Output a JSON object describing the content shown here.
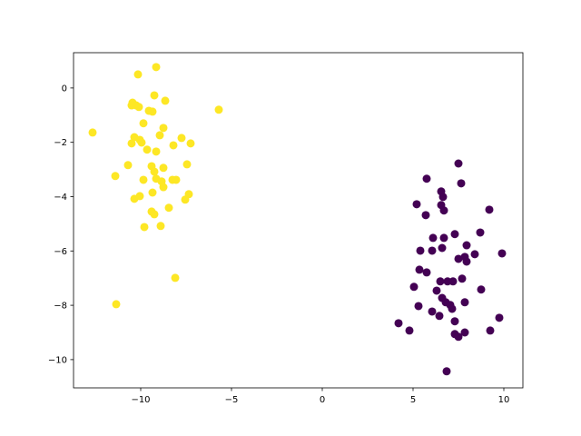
{
  "chart_data": {
    "type": "scatter",
    "xlim": [
      -13.7,
      11.05
    ],
    "ylim": [
      -11.04,
      1.3
    ],
    "xticks": [
      {
        "value": -10,
        "label": "−10"
      },
      {
        "value": -5,
        "label": "−5"
      },
      0,
      5,
      10
    ],
    "yticks": [
      {
        "value": -10,
        "label": "−10"
      },
      {
        "value": -8,
        "label": "−8"
      },
      {
        "value": -6,
        "label": "−6"
      },
      {
        "value": -4,
        "label": "−4"
      },
      {
        "value": -2,
        "label": "−2"
      },
      0
    ],
    "series": [
      {
        "color": "#fde725",
        "x": [
          -9.15,
          -10.15,
          -5.7,
          -9.25,
          -8.65,
          -10.45,
          -10.25,
          -10.5,
          -10.1,
          -9.55,
          -9.35,
          -9.85,
          -8.75,
          -12.65,
          -10.35,
          -8.95,
          -10.05,
          -7.75,
          -10.5,
          -9.95,
          -7.25,
          -8.2,
          -9.65,
          -9.15,
          -7.45,
          -10.7,
          -9.4,
          -8.75,
          -9.25,
          -11.4,
          -9.85,
          -9.15,
          -8.85,
          -8.25,
          -8.05,
          -8.75,
          -10.05,
          -9.35,
          -7.35,
          -10.35,
          -7.55,
          -8.45,
          -9.4,
          -9.25,
          -8.9,
          -9.8,
          -8.1,
          -11.35
        ],
        "y": [
          0.77,
          0.5,
          -0.8,
          -0.27,
          -0.47,
          -0.54,
          -0.64,
          -0.64,
          -0.7,
          -0.84,
          -0.87,
          -1.3,
          -1.47,
          -1.64,
          -1.81,
          -1.74,
          -1.91,
          -1.84,
          -2.04,
          -2.01,
          -2.04,
          -2.11,
          -2.27,
          -2.34,
          -2.81,
          -2.84,
          -2.88,
          -2.94,
          -3.08,
          -3.24,
          -3.38,
          -3.34,
          -3.44,
          -3.38,
          -3.38,
          -3.65,
          -3.98,
          -3.85,
          -3.91,
          -4.08,
          -4.11,
          -4.41,
          -4.55,
          -4.65,
          -5.08,
          -5.12,
          -6.99,
          -7.96
        ]
      },
      {
        "color": "#440154",
        "x": [
          7.5,
          5.75,
          7.65,
          6.55,
          6.65,
          5.2,
          6.55,
          6.7,
          9.2,
          5.7,
          8.7,
          7.3,
          6.1,
          6.7,
          7.95,
          5.4,
          6.05,
          6.6,
          9.9,
          8.4,
          7.5,
          7.85,
          7.95,
          5.35,
          5.75,
          6.5,
          6.9,
          7.2,
          7.7,
          5.05,
          8.75,
          6.3,
          6.6,
          6.8,
          7.05,
          7.85,
          7.15,
          5.3,
          6.05,
          6.45,
          9.75,
          4.2,
          7.3,
          4.8,
          9.25,
          7.85,
          7.3,
          7.5,
          6.85
        ],
        "y": [
          -2.78,
          -3.34,
          -3.51,
          -3.81,
          -4.01,
          -4.28,
          -4.31,
          -4.51,
          -4.48,
          -4.68,
          -5.32,
          -5.38,
          -5.52,
          -5.52,
          -5.79,
          -5.99,
          -5.99,
          -5.89,
          -6.09,
          -6.12,
          -6.29,
          -6.22,
          -6.39,
          -6.69,
          -6.79,
          -7.12,
          -7.12,
          -7.12,
          -7.02,
          -7.32,
          -7.42,
          -7.46,
          -7.73,
          -7.89,
          -7.99,
          -7.89,
          -8.13,
          -8.03,
          -8.23,
          -8.39,
          -8.46,
          -8.66,
          -8.59,
          -8.93,
          -8.93,
          -9.0,
          -9.06,
          -9.16,
          -10.43
        ]
      }
    ]
  }
}
